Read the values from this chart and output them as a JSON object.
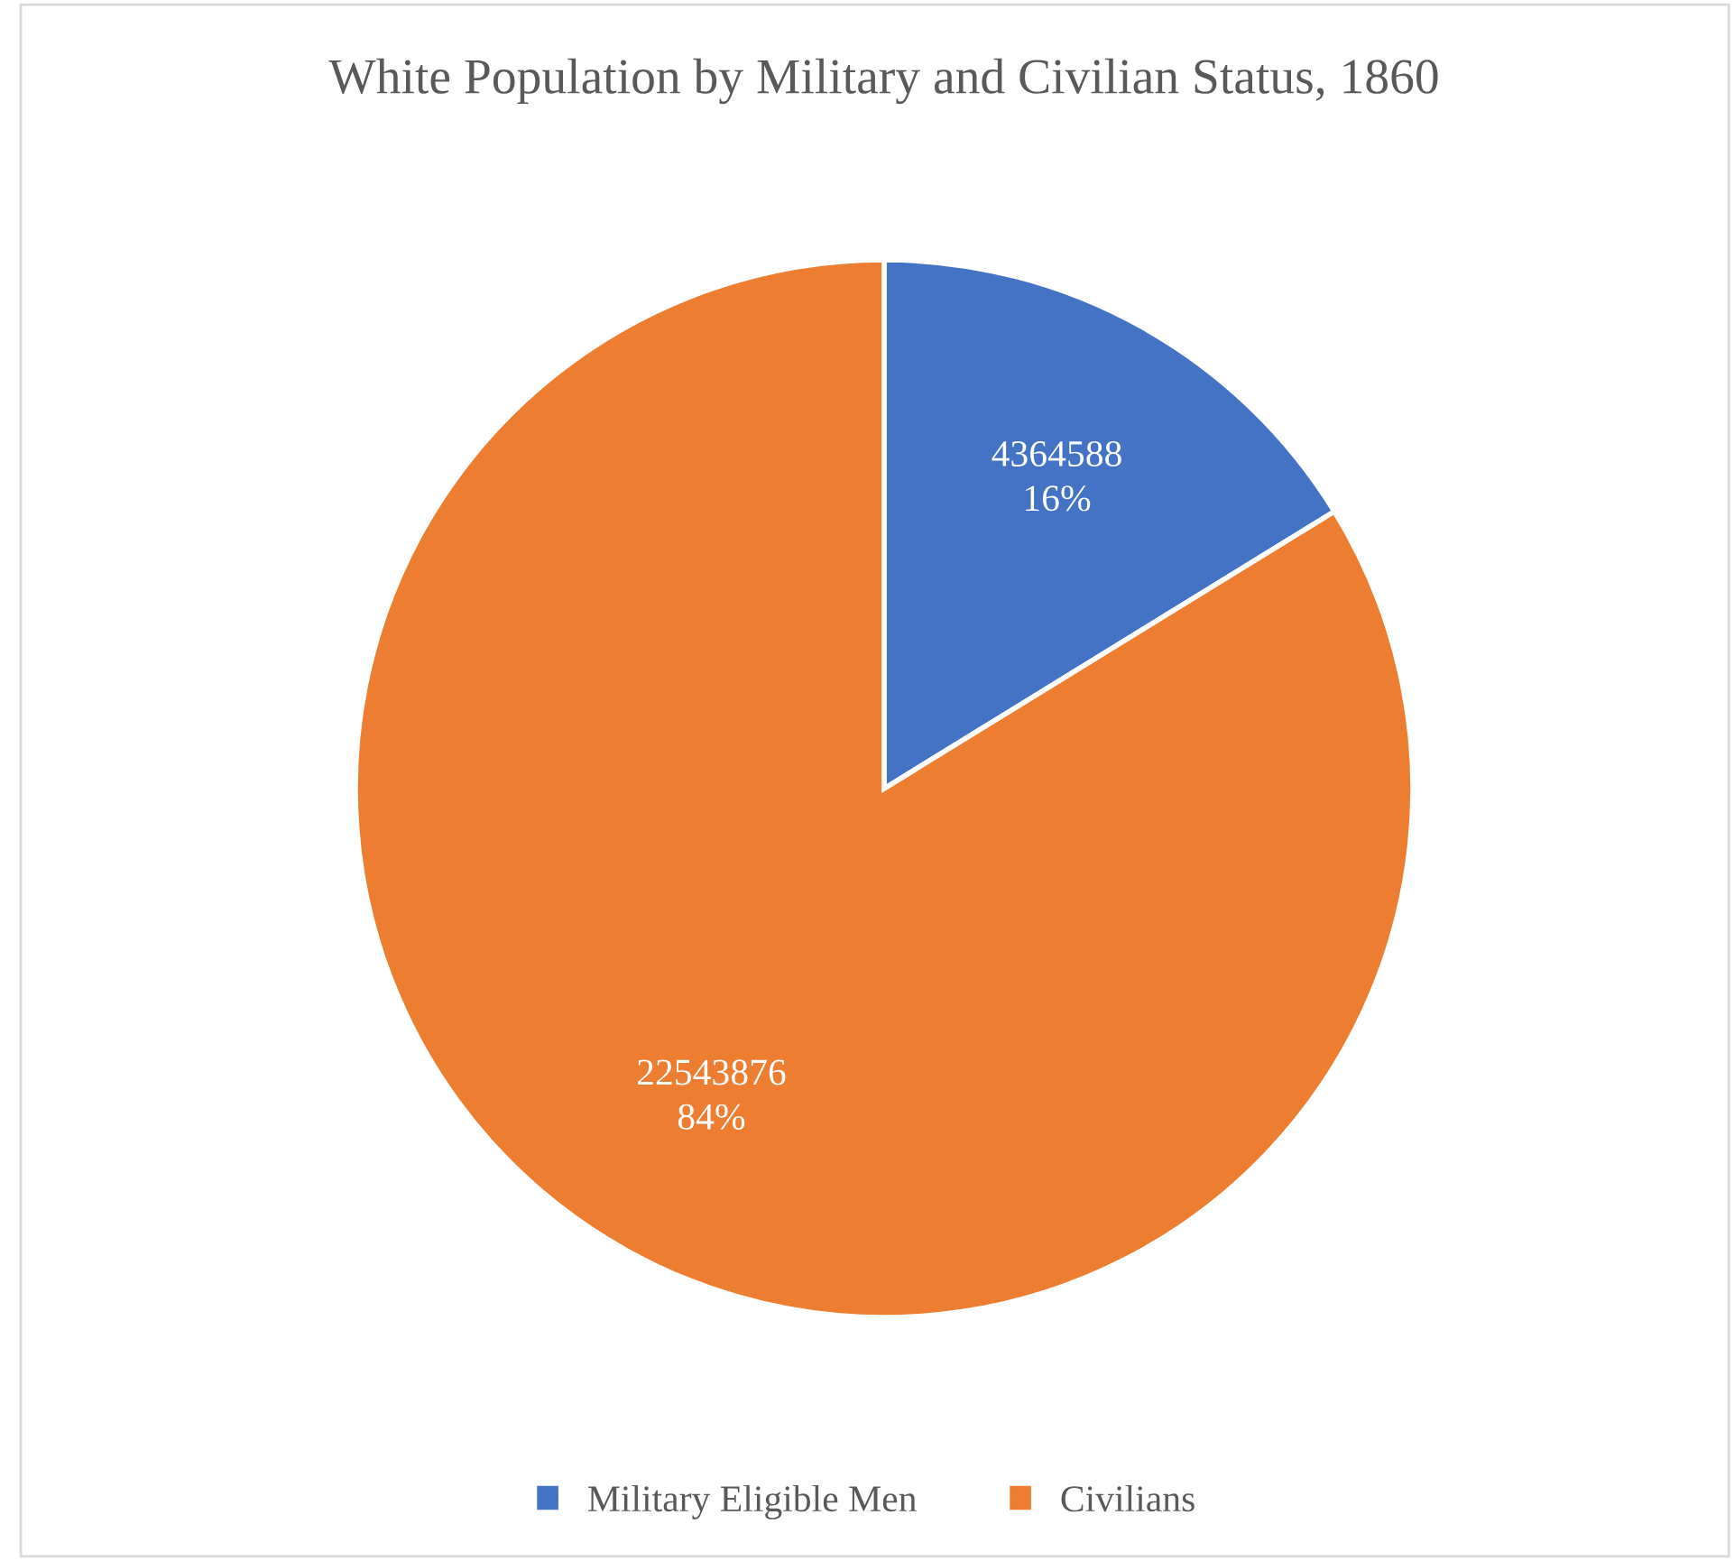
{
  "chart_data": {
    "type": "pie",
    "title": "White Population by Military and Civilian Status, 1860",
    "categories": [
      "Military Eligible Men",
      "Civilians"
    ],
    "values": [
      4364588,
      22543876
    ],
    "colors": [
      "#4472c4",
      "#ed7d31"
    ],
    "value_labels": [
      "4364588\n16%",
      "22543876\n84%"
    ],
    "legend": "bottom"
  }
}
